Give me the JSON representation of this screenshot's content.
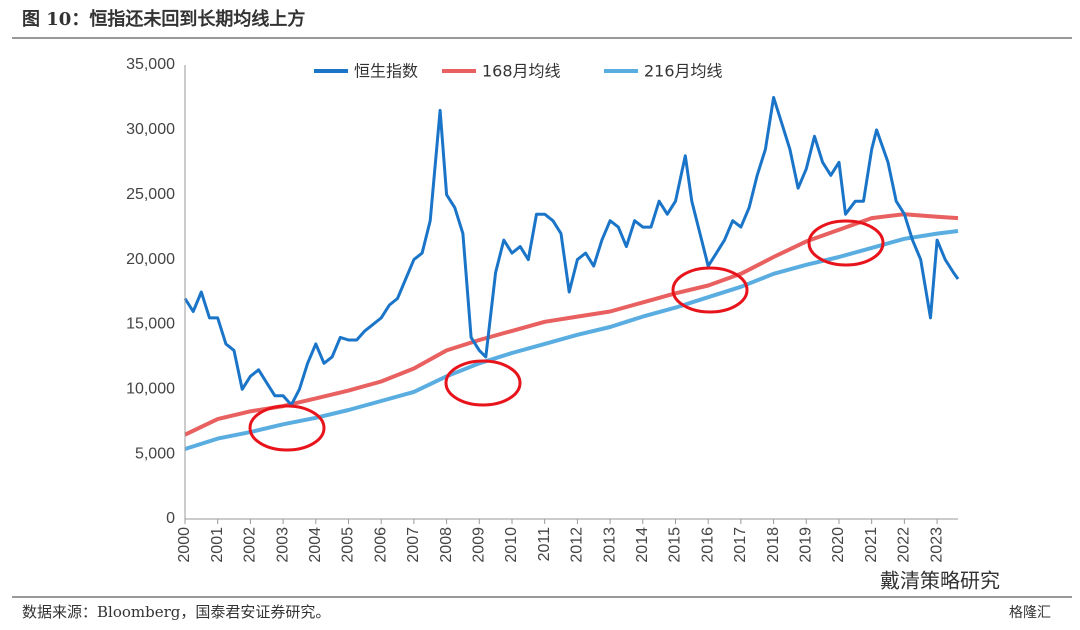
{
  "chart_data": {
    "type": "line",
    "title": "图 10：恒指还未回到长期均线上方",
    "source": "数据来源：Bloomberg，国泰君安证券研究。",
    "watermarks": [
      "戴清策略研究",
      "格隆汇"
    ],
    "xlim": [
      2000,
      2023.64
    ],
    "xticks": [
      2000,
      2001,
      2002,
      2003,
      2004,
      2005,
      2006,
      2007,
      2008,
      2009,
      2010,
      2011,
      2012,
      2013,
      2014,
      2015,
      2016,
      2017,
      2018,
      2019,
      2020,
      2021,
      2022,
      2023
    ],
    "ylim": [
      0,
      35000
    ],
    "yticks": [
      0,
      {
        "value": 5000,
        "label": "5,000"
      },
      {
        "value": 10000,
        "label": "10,000"
      },
      {
        "value": 15000,
        "label": "15,000"
      },
      {
        "value": 20000,
        "label": "20,000"
      },
      {
        "value": 25000,
        "label": "25,000"
      },
      {
        "value": 30000,
        "label": "30,000"
      },
      {
        "value": 35000,
        "label": "35,000"
      }
    ],
    "grid": false,
    "legend": "top",
    "series": [
      {
        "name": "恒生指数",
        "color": "#1a75c9",
        "x": [
          2000.0,
          2000.25,
          2000.5,
          2000.75,
          2001.0,
          2001.25,
          2001.5,
          2001.75,
          2002.0,
          2002.25,
          2002.5,
          2002.75,
          2003.0,
          2003.25,
          2003.5,
          2003.75,
          2004.0,
          2004.25,
          2004.5,
          2004.75,
          2005.0,
          2005.25,
          2005.5,
          2005.75,
          2006.0,
          2006.25,
          2006.5,
          2006.75,
          2007.0,
          2007.25,
          2007.5,
          2007.8,
          2008.0,
          2008.25,
          2008.5,
          2008.75,
          2009.0,
          2009.2,
          2009.5,
          2009.75,
          2010.0,
          2010.25,
          2010.5,
          2010.75,
          2011.0,
          2011.25,
          2011.5,
          2011.75,
          2012.0,
          2012.25,
          2012.5,
          2012.75,
          2013.0,
          2013.25,
          2013.5,
          2013.75,
          2014.0,
          2014.25,
          2014.5,
          2014.75,
          2015.0,
          2015.3,
          2015.5,
          2015.75,
          2016.0,
          2016.25,
          2016.5,
          2016.75,
          2017.0,
          2017.25,
          2017.5,
          2017.75,
          2018.0,
          2018.25,
          2018.5,
          2018.75,
          2019.0,
          2019.25,
          2019.5,
          2019.75,
          2020.0,
          2020.2,
          2020.5,
          2020.75,
          2021.0,
          2021.15,
          2021.5,
          2021.75,
          2022.0,
          2022.25,
          2022.5,
          2022.8,
          2023.0,
          2023.25,
          2023.5,
          2023.64
        ],
        "values": [
          17000,
          16000,
          17500,
          15500,
          15500,
          13500,
          13000,
          10000,
          11000,
          11500,
          10500,
          9500,
          9500,
          8800,
          10000,
          12000,
          13500,
          12000,
          12500,
          14000,
          13800,
          13800,
          14500,
          15000,
          15500,
          16500,
          17000,
          18500,
          20000,
          20500,
          23000,
          31500,
          25000,
          24000,
          22000,
          14000,
          13000,
          12500,
          19000,
          21500,
          20500,
          21000,
          20000,
          23500,
          23500,
          23000,
          22000,
          17500,
          20000,
          20500,
          19500,
          21500,
          23000,
          22500,
          21000,
          23000,
          22500,
          22500,
          24500,
          23500,
          24500,
          28000,
          24500,
          22000,
          19500,
          20500,
          21500,
          23000,
          22500,
          24000,
          26500,
          28500,
          32500,
          30500,
          28500,
          25500,
          27000,
          29500,
          27500,
          26500,
          27500,
          23500,
          24500,
          24500,
          28500,
          30000,
          27500,
          24500,
          23500,
          21500,
          20000,
          15500,
          21500,
          20000,
          19000,
          18500
        ]
      },
      {
        "name": "168月均线",
        "color": "#e8605f",
        "x": [
          2000,
          2001,
          2002,
          2003,
          2004,
          2005,
          2006,
          2007,
          2008,
          2009,
          2010,
          2011,
          2012,
          2013,
          2014,
          2015,
          2016,
          2017,
          2018,
          2019,
          2020,
          2021,
          2022,
          2023,
          2023.64
        ],
        "values": [
          6500,
          7700,
          8300,
          8700,
          9300,
          9900,
          10600,
          11600,
          13000,
          13800,
          14500,
          15200,
          15600,
          16000,
          16700,
          17400,
          18000,
          18900,
          20200,
          21400,
          22300,
          23200,
          23500,
          23300,
          23200
        ]
      },
      {
        "name": "216月均线",
        "color": "#5aade0",
        "x": [
          2000,
          2001,
          2002,
          2003,
          2004,
          2005,
          2006,
          2007,
          2008,
          2009,
          2010,
          2011,
          2012,
          2013,
          2014,
          2015,
          2016,
          2017,
          2018,
          2019,
          2020,
          2021,
          2022,
          2023,
          2023.64
        ],
        "values": [
          5400,
          6200,
          6700,
          7300,
          7800,
          8400,
          9100,
          9800,
          11000,
          12000,
          12800,
          13500,
          14200,
          14800,
          15600,
          16300,
          17100,
          17900,
          18900,
          19600,
          20200,
          20900,
          21600,
          22000,
          22200
        ]
      }
    ]
  }
}
